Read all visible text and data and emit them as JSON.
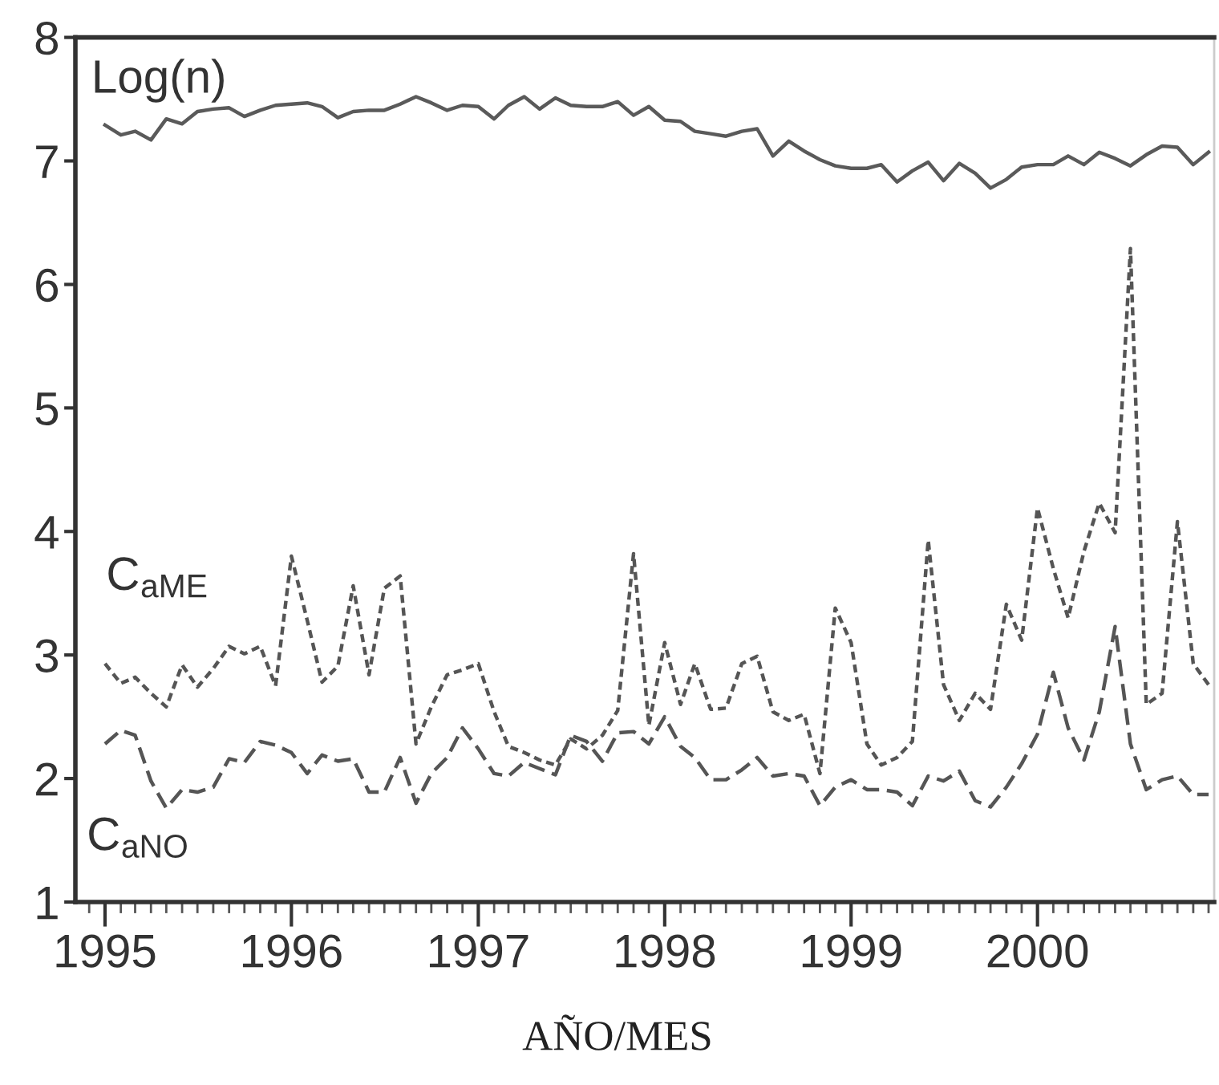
{
  "chart_data": {
    "type": "line",
    "xlabel": "AÑO/MES",
    "x": [
      "1995-01",
      "1995-02",
      "1995-03",
      "1995-04",
      "1995-05",
      "1995-06",
      "1995-07",
      "1995-08",
      "1995-09",
      "1995-10",
      "1995-11",
      "1995-12",
      "1996-01",
      "1996-02",
      "1996-03",
      "1996-04",
      "1996-05",
      "1996-06",
      "1996-07",
      "1996-08",
      "1996-09",
      "1996-10",
      "1996-11",
      "1996-12",
      "1997-01",
      "1997-02",
      "1997-03",
      "1997-04",
      "1997-05",
      "1997-06",
      "1997-07",
      "1997-08",
      "1997-09",
      "1997-10",
      "1997-11",
      "1997-12",
      "1998-01",
      "1998-02",
      "1998-03",
      "1998-04",
      "1998-05",
      "1998-06",
      "1998-07",
      "1998-08",
      "1998-09",
      "1998-10",
      "1998-11",
      "1998-12",
      "1999-01",
      "1999-02",
      "1999-03",
      "1999-04",
      "1999-05",
      "1999-06",
      "1999-07",
      "1999-08",
      "1999-09",
      "1999-10",
      "1999-11",
      "1999-12",
      "2000-01",
      "2000-02",
      "2000-03",
      "2000-04",
      "2000-05",
      "2000-06",
      "2000-07",
      "2000-08",
      "2000-09",
      "2000-10",
      "2000-11",
      "2000-12"
    ],
    "series": [
      {
        "name": "Log(n)",
        "color": "#5a5a5a",
        "line_style": "solid",
        "values": [
          7.29,
          7.21,
          7.24,
          7.17,
          7.34,
          7.3,
          7.4,
          7.42,
          7.43,
          7.36,
          7.41,
          7.45,
          7.46,
          7.47,
          7.44,
          7.35,
          7.4,
          7.41,
          7.41,
          7.46,
          7.52,
          7.47,
          7.41,
          7.45,
          7.44,
          7.34,
          7.45,
          7.52,
          7.42,
          7.51,
          7.45,
          7.44,
          7.44,
          7.48,
          7.37,
          7.44,
          7.33,
          7.32,
          7.24,
          7.22,
          7.2,
          7.24,
          7.26,
          7.04,
          7.16,
          7.08,
          7.01,
          6.96,
          6.94,
          6.94,
          6.97,
          6.83,
          6.92,
          6.99,
          6.84,
          6.98,
          6.9,
          6.78,
          6.85,
          6.95,
          6.97,
          6.97,
          7.04,
          6.97,
          7.07,
          7.02,
          6.96,
          7.05,
          7.12,
          7.11,
          6.97,
          7.07
        ]
      },
      {
        "name": "C$_{aME}$",
        "color": "#555555",
        "line_style": "dotted",
        "values": [
          2.93,
          2.77,
          2.82,
          2.69,
          2.58,
          2.92,
          2.74,
          2.89,
          3.07,
          3.01,
          3.07,
          2.75,
          3.8,
          3.28,
          2.78,
          2.91,
          3.56,
          2.84,
          3.54,
          3.64,
          2.28,
          2.58,
          2.84,
          2.88,
          2.93,
          2.54,
          2.26,
          2.21,
          2.15,
          2.11,
          2.32,
          2.24,
          2.35,
          2.55,
          3.82,
          2.43,
          3.1,
          2.6,
          2.93,
          2.56,
          2.57,
          2.93,
          2.99,
          2.54,
          2.47,
          2.52,
          2.04,
          3.38,
          3.1,
          2.28,
          2.11,
          2.17,
          2.3,
          3.93,
          2.76,
          2.47,
          2.69,
          2.56,
          3.41,
          3.12,
          4.19,
          3.7,
          3.3,
          3.84,
          4.23,
          3.99,
          6.29,
          2.6,
          2.69,
          4.08,
          2.93,
          2.76
        ]
      },
      {
        "name": "C$_{aNO}$",
        "color": "#555555",
        "line_style": "dashed",
        "values": [
          2.28,
          2.39,
          2.35,
          1.98,
          1.76,
          1.91,
          1.89,
          1.93,
          2.16,
          2.13,
          2.3,
          2.27,
          2.21,
          2.04,
          2.19,
          2.14,
          2.16,
          1.89,
          1.89,
          2.17,
          1.8,
          2.04,
          2.17,
          2.41,
          2.24,
          2.04,
          2.02,
          2.13,
          2.08,
          2.03,
          2.35,
          2.3,
          2.14,
          2.37,
          2.38,
          2.28,
          2.5,
          2.26,
          2.17,
          1.99,
          1.99,
          2.07,
          2.17,
          2.02,
          2.04,
          2.02,
          1.78,
          1.93,
          1.99,
          1.91,
          1.91,
          1.89,
          1.78,
          2.02,
          1.98,
          2.06,
          1.82,
          1.77,
          1.93,
          2.12,
          2.36,
          2.86,
          2.41,
          2.15,
          2.54,
          3.23,
          2.28,
          1.91,
          1.99,
          2.02,
          1.87,
          1.87
        ]
      }
    ],
    "xlim": [
      "1994-11-04",
      "2000-12-12"
    ],
    "xticks": [
      {
        "value": "1995-01",
        "label": "1995"
      },
      {
        "value": "1996-01",
        "label": "1996"
      },
      {
        "value": "1997-01",
        "label": "1997"
      },
      {
        "value": "1998-01",
        "label": "1998"
      },
      {
        "value": "1999-01",
        "label": "1999"
      },
      {
        "value": "2000-01",
        "label": "2000"
      }
    ],
    "ylim": [
      1,
      8
    ],
    "yticks": [
      1,
      2,
      3,
      4,
      5,
      6,
      7,
      8
    ],
    "grid": false,
    "legend": false
  }
}
